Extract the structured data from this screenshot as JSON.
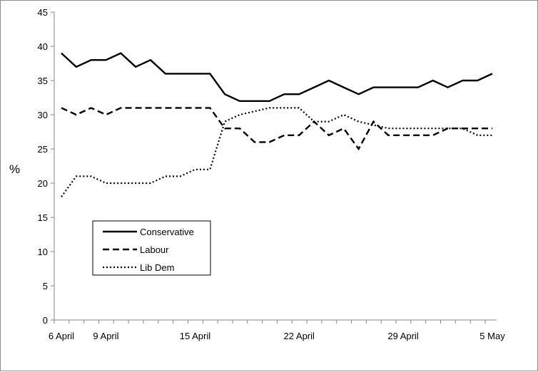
{
  "chart_data": {
    "type": "line",
    "title": "",
    "xlabel": "",
    "ylabel": "%",
    "ylim": [
      0,
      45
    ],
    "yticks": [
      0,
      5,
      10,
      15,
      20,
      25,
      30,
      35,
      40,
      45
    ],
    "xlim": [
      0,
      29
    ],
    "xticks": [
      {
        "x": 0,
        "label": "6 April"
      },
      {
        "x": 3,
        "label": "9 April"
      },
      {
        "x": 9,
        "label": "15 April"
      },
      {
        "x": 16,
        "label": "22 April"
      },
      {
        "x": 23,
        "label": "29 April"
      },
      {
        "x": 29,
        "label": "5 May"
      }
    ],
    "grid": false,
    "legend_position": "lower-left",
    "series": [
      {
        "name": "Conservative",
        "style": "solid",
        "color": "#000000",
        "x": [
          0,
          1,
          2,
          3,
          4,
          5,
          6,
          7,
          8,
          9,
          10,
          11,
          12,
          13,
          14,
          15,
          16,
          17,
          18,
          19,
          20,
          21,
          22,
          23,
          24,
          25,
          26,
          27,
          28,
          29
        ],
        "values": [
          39,
          37,
          38,
          38,
          39,
          37,
          38,
          36,
          36,
          36,
          36,
          33,
          32,
          32,
          32,
          33,
          33,
          34,
          35,
          34,
          33,
          34,
          34,
          34,
          34,
          35,
          34,
          35,
          35,
          36
        ]
      },
      {
        "name": "Labour",
        "style": "dashed",
        "color": "#000000",
        "x": [
          0,
          1,
          2,
          3,
          4,
          5,
          6,
          7,
          8,
          9,
          10,
          11,
          12,
          13,
          14,
          15,
          16,
          17,
          18,
          19,
          20,
          21,
          22,
          23,
          24,
          25,
          26,
          27,
          28,
          29
        ],
        "values": [
          31,
          30,
          31,
          30,
          31,
          31,
          31,
          31,
          31,
          31,
          31,
          28,
          28,
          26,
          26,
          27,
          27,
          29,
          27,
          28,
          25,
          29,
          27,
          27,
          27,
          27,
          28,
          28,
          28,
          28
        ]
      },
      {
        "name": "Lib Dem",
        "style": "dotted",
        "color": "#000000",
        "x": [
          0,
          1,
          2,
          3,
          4,
          5,
          6,
          7,
          8,
          9,
          10,
          11,
          12,
          13,
          14,
          15,
          16,
          17,
          18,
          19,
          20,
          21,
          22,
          23,
          24,
          25,
          26,
          27,
          28,
          29
        ],
        "values": [
          18,
          21,
          21,
          20,
          20,
          20,
          20,
          21,
          21,
          22,
          22,
          29,
          30,
          30.5,
          31,
          31,
          31,
          29,
          29,
          30,
          29,
          28.5,
          28,
          28,
          28,
          28,
          28,
          28,
          27,
          27
        ]
      }
    ]
  }
}
